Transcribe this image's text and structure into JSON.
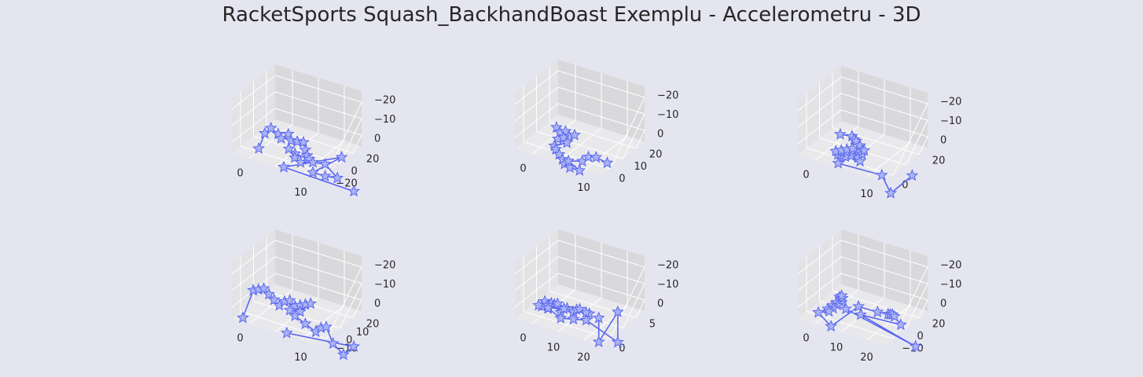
{
  "figure": {
    "title": "RacketSports Squash_BackhandBoast Exemplu - Accelerometru - 3D"
  },
  "colors": {
    "line": "#5a66ee",
    "marker_fill": "#a9b3f5",
    "background": "#e5e5f0",
    "pane_left": "#e3e3e6",
    "pane_right": "#d9d9dc",
    "pane_floor": "#e9e9ec",
    "grid": "#ffffff"
  },
  "chart_data": [
    {
      "type": "scatter",
      "marker": "star",
      "xticks": [
        "0",
        "10"
      ],
      "yticks": [
        "20",
        "0",
        "−20"
      ],
      "zticks": [
        "0",
        "−10",
        "−20"
      ],
      "points": [
        [
          -3,
          -4,
          -10
        ],
        [
          -2,
          -2,
          -1
        ],
        [
          -1,
          0,
          3
        ],
        [
          0,
          3,
          2
        ],
        [
          1,
          2,
          0
        ],
        [
          2,
          5,
          4
        ],
        [
          3,
          4,
          1
        ],
        [
          4,
          6,
          2
        ],
        [
          5,
          8,
          3
        ],
        [
          6,
          6,
          -1
        ],
        [
          7,
          4,
          -4
        ],
        [
          8,
          2,
          -6
        ],
        [
          5,
          0,
          -6
        ],
        [
          4,
          -2,
          -5
        ],
        [
          6,
          -4,
          -9
        ],
        [
          8,
          -6,
          -11
        ],
        [
          10,
          -2,
          -8
        ],
        [
          12,
          2,
          -6
        ],
        [
          14,
          6,
          -10
        ],
        [
          12,
          2,
          -12
        ],
        [
          10,
          -2,
          -13
        ],
        [
          14,
          10,
          2
        ],
        [
          8,
          -22,
          -20
        ],
        [
          16,
          14,
          -12
        ]
      ]
    },
    {
      "type": "scatter",
      "marker": "star",
      "xticks": [
        "0",
        "10"
      ],
      "yticks": [
        "20",
        "10",
        "0"
      ],
      "zticks": [
        "0",
        "−10",
        "−20"
      ],
      "points": [
        [
          -2,
          20,
          -2
        ],
        [
          -1,
          20,
          -4
        ],
        [
          0,
          21,
          -2
        ],
        [
          1,
          21,
          -4
        ],
        [
          2,
          22,
          -2
        ],
        [
          -1,
          19,
          -8
        ],
        [
          0,
          20,
          -6
        ],
        [
          1,
          20,
          -8
        ],
        [
          -2,
          19,
          -12
        ],
        [
          -1,
          18,
          -14
        ],
        [
          0,
          18,
          -16
        ],
        [
          1,
          18,
          -18
        ],
        [
          4,
          14,
          -22
        ],
        [
          8,
          10,
          -25
        ],
        [
          12,
          8,
          -26
        ],
        [
          10,
          6,
          -24
        ],
        [
          14,
          6,
          -22
        ],
        [
          17,
          4,
          -20
        ],
        [
          18,
          6,
          -18
        ],
        [
          20,
          8,
          -18
        ]
      ]
    },
    {
      "type": "scatter",
      "marker": "star",
      "xticks": [
        "0",
        "10"
      ],
      "yticks": [
        "20",
        "0"
      ],
      "zticks": [
        "0",
        "−10",
        "−20"
      ],
      "points": [
        [
          -4,
          10,
          2
        ],
        [
          0,
          8,
          2
        ],
        [
          1,
          7,
          0
        ],
        [
          2,
          6,
          -1
        ],
        [
          3,
          6,
          -3
        ],
        [
          4,
          5,
          -6
        ],
        [
          3,
          4,
          -10
        ],
        [
          2,
          3,
          -12
        ],
        [
          1,
          2,
          -14
        ],
        [
          0,
          1,
          -16
        ],
        [
          -1,
          2,
          -14
        ],
        [
          -2,
          3,
          -12
        ],
        [
          -1,
          4,
          -10
        ],
        [
          0,
          5,
          -8
        ],
        [
          1,
          6,
          -6
        ],
        [
          2,
          7,
          -10
        ],
        [
          3,
          6,
          -12
        ],
        [
          4,
          5,
          -8
        ],
        [
          5,
          4,
          -6
        ],
        [
          0,
          0,
          -20
        ],
        [
          16,
          -10,
          -24
        ],
        [
          12,
          4,
          -26
        ],
        [
          14,
          12,
          -8
        ]
      ]
    },
    {
      "type": "scatter",
      "marker": "star",
      "xticks": [
        "0",
        "10"
      ],
      "yticks": [
        "20",
        "10",
        "0",
        "−10"
      ],
      "zticks": [
        "0",
        "−10",
        "−20"
      ],
      "points": [
        [
          -3,
          -4,
          -28
        ],
        [
          -1,
          -2,
          -8
        ],
        [
          0,
          -1,
          -6
        ],
        [
          1,
          0,
          -4
        ],
        [
          2,
          1,
          -6
        ],
        [
          3,
          2,
          -8
        ],
        [
          4,
          3,
          -10
        ],
        [
          5,
          4,
          -6
        ],
        [
          6,
          5,
          -4
        ],
        [
          7,
          6,
          -6
        ],
        [
          8,
          7,
          -4
        ],
        [
          9,
          8,
          -2
        ],
        [
          10,
          9,
          0
        ],
        [
          8,
          7,
          -8
        ],
        [
          6,
          5,
          -10
        ],
        [
          7,
          6,
          -12
        ],
        [
          9,
          8,
          -14
        ],
        [
          11,
          10,
          -16
        ],
        [
          12,
          11,
          -12
        ],
        [
          13,
          12,
          -10
        ],
        [
          14,
          14,
          -18
        ],
        [
          16,
          16,
          -22
        ],
        [
          18,
          18,
          -14
        ],
        [
          10,
          -6,
          -30
        ]
      ]
    },
    {
      "type": "scatter",
      "marker": "star",
      "xticks": [
        "0",
        "10",
        "20"
      ],
      "yticks": [
        "5",
        "0"
      ],
      "zticks": [
        "0",
        "−10",
        "−20"
      ],
      "points": [
        [
          -2,
          6,
          -4
        ],
        [
          -1,
          5,
          -2
        ],
        [
          0,
          6,
          0
        ],
        [
          1,
          5,
          -2
        ],
        [
          2,
          6,
          -4
        ],
        [
          3,
          5,
          -1
        ],
        [
          4,
          6,
          0
        ],
        [
          5,
          5,
          -3
        ],
        [
          6,
          6,
          -1
        ],
        [
          7,
          6,
          1
        ],
        [
          8,
          6,
          2
        ],
        [
          9,
          7,
          3
        ],
        [
          10,
          6,
          1
        ],
        [
          0,
          4,
          -8
        ],
        [
          1,
          3,
          -10
        ],
        [
          2,
          4,
          -6
        ],
        [
          4,
          3,
          -8
        ],
        [
          6,
          2,
          -12
        ],
        [
          8,
          3,
          -14
        ],
        [
          10,
          4,
          -10
        ],
        [
          12,
          5,
          -6
        ],
        [
          16,
          8,
          -8
        ],
        [
          20,
          6,
          8
        ],
        [
          22,
          2,
          -24
        ],
        [
          18,
          4,
          -4
        ]
      ]
    },
    {
      "type": "scatter",
      "marker": "star",
      "xticks": [
        "0",
        "10",
        "20"
      ],
      "yticks": [
        "20",
        "0",
        "−20"
      ],
      "zticks": [
        "0",
        "−10",
        "−20"
      ],
      "points": [
        [
          -2,
          8,
          4
        ],
        [
          -1,
          7,
          2
        ],
        [
          0,
          6,
          0
        ],
        [
          1,
          5,
          2
        ],
        [
          0,
          6,
          4
        ],
        [
          -1,
          5,
          -2
        ],
        [
          0,
          4,
          -4
        ],
        [
          -1,
          3,
          -6
        ],
        [
          0,
          2,
          -8
        ],
        [
          -1,
          1,
          -10
        ],
        [
          0,
          0,
          -12
        ],
        [
          -2,
          -2,
          -16
        ],
        [
          6,
          -8,
          -26
        ],
        [
          8,
          2,
          -2
        ],
        [
          10,
          8,
          2
        ],
        [
          12,
          10,
          4
        ],
        [
          14,
          8,
          3
        ],
        [
          16,
          6,
          2
        ],
        [
          18,
          4,
          0
        ],
        [
          20,
          4,
          -4
        ],
        [
          10,
          0,
          -8
        ],
        [
          22,
          8,
          -12
        ],
        [
          4,
          2,
          -6
        ]
      ]
    }
  ]
}
